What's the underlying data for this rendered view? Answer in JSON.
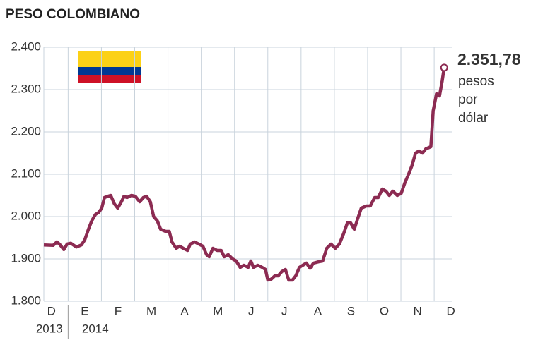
{
  "chart_data": {
    "type": "line",
    "title": "PESO COLOMBIANO",
    "color": "#8c2b52",
    "grid": true,
    "ylim": [
      1800,
      2400
    ],
    "yticks": [
      {
        "value": 1800,
        "label": "1.800"
      },
      {
        "value": 1900,
        "label": "1.900"
      },
      {
        "value": 2000,
        "label": "2.000"
      },
      {
        "value": 2100,
        "label": "2.100"
      },
      {
        "value": 2200,
        "label": "2.200"
      },
      {
        "value": 2300,
        "label": "2.300"
      },
      {
        "value": 2400,
        "label": "2.400"
      }
    ],
    "xlim": [
      0.27,
      12.55
    ],
    "xticks": [
      {
        "value": 0.5,
        "label": "D"
      },
      {
        "value": 1.5,
        "label": "E"
      },
      {
        "value": 2.5,
        "label": "F"
      },
      {
        "value": 3.5,
        "label": "M"
      },
      {
        "value": 4.5,
        "label": "A"
      },
      {
        "value": 5.5,
        "label": "M"
      },
      {
        "value": 6.5,
        "label": "J"
      },
      {
        "value": 7.5,
        "label": "J"
      },
      {
        "value": 8.5,
        "label": "A"
      },
      {
        "value": 9.5,
        "label": "S"
      },
      {
        "value": 10.5,
        "label": "O"
      },
      {
        "value": 11.5,
        "label": "N"
      },
      {
        "value": 12.5,
        "label": "D"
      }
    ],
    "years": [
      "2013",
      "2014"
    ],
    "x": [
      0.27,
      0.55,
      0.66,
      0.74,
      0.87,
      0.97,
      1.08,
      1.25,
      1.4,
      1.5,
      1.61,
      1.71,
      1.82,
      1.92,
      2.01,
      2.09,
      2.2,
      2.28,
      2.39,
      2.49,
      2.6,
      2.68,
      2.77,
      2.9,
      3.02,
      3.15,
      3.26,
      3.36,
      3.47,
      3.57,
      3.68,
      3.78,
      3.93,
      4.04,
      4.12,
      4.25,
      4.35,
      4.46,
      4.59,
      4.67,
      4.8,
      4.93,
      5.05,
      5.16,
      5.24,
      5.35,
      5.48,
      5.6,
      5.69,
      5.81,
      5.94,
      6.05,
      6.17,
      6.28,
      6.41,
      6.49,
      6.57,
      6.7,
      6.83,
      6.93,
      7.0,
      7.1,
      7.21,
      7.31,
      7.42,
      7.53,
      7.63,
      7.74,
      7.84,
      7.95,
      8.05,
      8.16,
      8.27,
      8.37,
      8.52,
      8.65,
      8.77,
      8.9,
      9.03,
      9.15,
      9.28,
      9.39,
      9.49,
      9.6,
      9.7,
      9.81,
      9.96,
      10.08,
      10.21,
      10.32,
      10.44,
      10.55,
      10.65,
      10.76,
      10.89,
      11.01,
      11.12,
      11.23,
      11.33,
      11.44,
      11.54,
      11.65,
      11.75,
      11.9,
      11.97,
      12.07,
      12.16,
      12.24,
      12.3
    ],
    "series": [
      {
        "values": [
          1933,
          1932,
          1940,
          1935,
          1922,
          1935,
          1937,
          1928,
          1933,
          1945,
          1970,
          1990,
          2005,
          2010,
          2020,
          2045,
          2048,
          2050,
          2030,
          2020,
          2035,
          2048,
          2045,
          2050,
          2048,
          2035,
          2045,
          2048,
          2035,
          2000,
          1990,
          1970,
          1965,
          1965,
          1940,
          1925,
          1930,
          1925,
          1920,
          1935,
          1940,
          1935,
          1930,
          1910,
          1905,
          1925,
          1920,
          1920,
          1905,
          1910,
          1900,
          1895,
          1880,
          1885,
          1880,
          1895,
          1880,
          1885,
          1880,
          1875,
          1850,
          1852,
          1860,
          1860,
          1870,
          1875,
          1850,
          1850,
          1860,
          1880,
          1885,
          1890,
          1878,
          1890,
          1893,
          1895,
          1925,
          1935,
          1925,
          1935,
          1960,
          1985,
          1985,
          1970,
          1995,
          2020,
          2025,
          2025,
          2045,
          2045,
          2065,
          2060,
          2050,
          2060,
          2050,
          2055,
          2080,
          2100,
          2120,
          2150,
          2155,
          2150,
          2160,
          2165,
          2250,
          2290,
          2285,
          2320,
          2351.78
        ]
      }
    ],
    "last_value_label": "2.351,78",
    "unit_lines": [
      "pesos",
      "por",
      "dólar"
    ]
  }
}
